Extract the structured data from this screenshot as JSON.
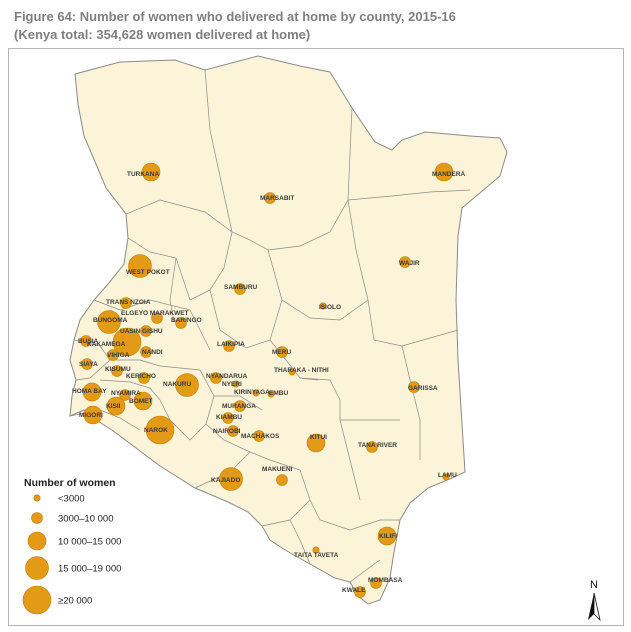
{
  "title": {
    "line1": "Figure 64: Number of women who delivered at home by county, 2015-16",
    "line2": "(Kenya total: 354,628 women delivered at home)"
  },
  "colors": {
    "land": "#fcf4d8",
    "border": "#8a8a8a",
    "bubble": "#e39a17",
    "bubble_stroke": "#c47d0a"
  },
  "legend": {
    "title": "Number of women",
    "items": [
      {
        "label": "<3000",
        "size_class": 1
      },
      {
        "label": "3000–10 000",
        "size_class": 2
      },
      {
        "label": "10 000–15 000",
        "size_class": 3
      },
      {
        "label": "15 000–19 000",
        "size_class": 4
      },
      {
        "label": "≥20 000",
        "size_class": 5
      }
    ]
  },
  "north_arrow": {
    "label": "N"
  },
  "counties": [
    {
      "name": "TURKANA",
      "size_class": 3
    },
    {
      "name": "MANDERA",
      "size_class": 3
    },
    {
      "name": "MARSABIT",
      "size_class": 2
    },
    {
      "name": "WAJIR",
      "size_class": 2
    },
    {
      "name": "WEST POKOT",
      "size_class": 4
    },
    {
      "name": "SAMBURU",
      "size_class": 2
    },
    {
      "name": "ISIOLO",
      "size_class": 1
    },
    {
      "name": "TRANS NZOIA",
      "size_class": 2
    },
    {
      "name": "ELGEYO MARAKWET",
      "size_class": 2
    },
    {
      "name": "BARINGO",
      "size_class": 2
    },
    {
      "name": "BUNGOMA",
      "size_class": 4
    },
    {
      "name": "UASIN GISHU",
      "size_class": 2
    },
    {
      "name": "BUSIA",
      "size_class": 2
    },
    {
      "name": "KAKAMEGA",
      "size_class": 5
    },
    {
      "name": "NANDI",
      "size_class": 2
    },
    {
      "name": "LAIKIPIA",
      "size_class": 2
    },
    {
      "name": "MERU",
      "size_class": 2
    },
    {
      "name": "SIAYA",
      "size_class": 2
    },
    {
      "name": "VIHIGA",
      "size_class": 2
    },
    {
      "name": "KISUMU",
      "size_class": 2
    },
    {
      "name": "KERICHO",
      "size_class": 2
    },
    {
      "name": "NAKURU",
      "size_class": 4
    },
    {
      "name": "NYANDARUA",
      "size_class": 2
    },
    {
      "name": "THARAKA - NITHI",
      "size_class": 1
    },
    {
      "name": "HOMA BAY",
      "size_class": 3
    },
    {
      "name": "NYAMIRA",
      "size_class": 2
    },
    {
      "name": "BOMET",
      "size_class": 3
    },
    {
      "name": "KISII",
      "size_class": 3
    },
    {
      "name": "NYERI",
      "size_class": 1
    },
    {
      "name": "KIRINYAGA",
      "size_class": 1
    },
    {
      "name": "EMBU",
      "size_class": 1
    },
    {
      "name": "MIGORI",
      "size_class": 3
    },
    {
      "name": "MURANGA",
      "size_class": 2
    },
    {
      "name": "KIAMBU",
      "size_class": 2
    },
    {
      "name": "NAROK",
      "size_class": 5
    },
    {
      "name": "NAIROBI",
      "size_class": 2
    },
    {
      "name": "MACHAKOS",
      "size_class": 2
    },
    {
      "name": "KITUI",
      "size_class": 3
    },
    {
      "name": "TANA RIVER",
      "size_class": 2
    },
    {
      "name": "GARISSA",
      "size_class": 2
    },
    {
      "name": "MAKUENI",
      "size_class": 2
    },
    {
      "name": "KAJIADO",
      "size_class": 4
    },
    {
      "name": "LAMU",
      "size_class": 1
    },
    {
      "name": "KILIFI",
      "size_class": 3
    },
    {
      "name": "TAITA TAVETA",
      "size_class": 1
    },
    {
      "name": "MOMBASA",
      "size_class": 2
    },
    {
      "name": "KWALE",
      "size_class": 2
    }
  ]
}
